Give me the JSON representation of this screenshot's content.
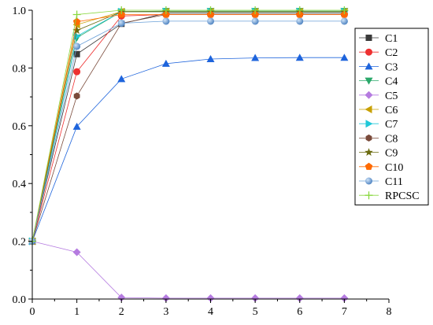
{
  "chart_data": {
    "type": "line",
    "x": [
      0,
      1,
      2,
      3,
      4,
      5,
      6,
      7
    ],
    "xlim": [
      0,
      8
    ],
    "ylim": [
      0,
      1.0
    ],
    "xticks": [
      "0",
      "1",
      "2",
      "3",
      "4",
      "5",
      "6",
      "7",
      "8"
    ],
    "yticks": [
      "0.0",
      "0.2",
      "0.4",
      "0.6",
      "0.8",
      "1.0"
    ],
    "grid": false,
    "legend_position": "right",
    "series": [
      {
        "name": "C1",
        "color": "#3a3a3a",
        "marker": "square",
        "values": [
          0.2,
          0.848,
          0.953,
          0.99,
          0.99,
          0.99,
          0.99,
          0.99
        ]
      },
      {
        "name": "C2",
        "color": "#ee3030",
        "marker": "circle",
        "values": [
          0.2,
          0.787,
          0.98,
          0.985,
          0.985,
          0.985,
          0.985,
          0.985
        ]
      },
      {
        "name": "C3",
        "color": "#1e64dc",
        "marker": "triangle-up",
        "values": [
          0.2,
          0.597,
          0.762,
          0.815,
          0.831,
          0.835,
          0.836,
          0.836
        ]
      },
      {
        "name": "C4",
        "color": "#2aa86a",
        "marker": "triangle-down",
        "values": [
          0.2,
          0.905,
          0.995,
          0.997,
          0.997,
          0.997,
          0.997,
          0.997
        ]
      },
      {
        "name": "C5",
        "color": "#b57be0",
        "marker": "diamond",
        "values": [
          0.2,
          0.162,
          0.005,
          0.003,
          0.003,
          0.003,
          0.003,
          0.003
        ]
      },
      {
        "name": "C6",
        "color": "#c8a000",
        "marker": "triangle-left",
        "values": [
          0.2,
          0.95,
          0.995,
          0.995,
          0.995,
          0.995,
          0.995,
          0.995
        ]
      },
      {
        "name": "C7",
        "color": "#20c8d8",
        "marker": "triangle-right",
        "values": [
          0.2,
          0.91,
          0.995,
          0.995,
          0.995,
          0.995,
          0.995,
          0.995
        ]
      },
      {
        "name": "C8",
        "color": "#7a4a3a",
        "marker": "hexagon",
        "values": [
          0.2,
          0.703,
          0.955,
          0.985,
          0.985,
          0.985,
          0.985,
          0.985
        ]
      },
      {
        "name": "C9",
        "color": "#6b6b10",
        "marker": "star",
        "values": [
          0.2,
          0.93,
          0.995,
          0.995,
          0.995,
          0.995,
          0.995,
          0.995
        ]
      },
      {
        "name": "C10",
        "color": "#ff6a00",
        "marker": "pentagon",
        "values": [
          0.2,
          0.96,
          0.985,
          0.985,
          0.985,
          0.985,
          0.985,
          0.985
        ]
      },
      {
        "name": "C11",
        "color": "#6aa0d8",
        "marker": "circle-gradient",
        "values": [
          0.2,
          0.875,
          0.955,
          0.962,
          0.962,
          0.962,
          0.962,
          0.962
        ]
      },
      {
        "name": "RPCSC",
        "color": "#8ad840",
        "marker": "plus",
        "values": [
          0.2,
          0.985,
          1.0,
          1.0,
          1.0,
          1.0,
          1.0,
          1.0
        ]
      }
    ]
  }
}
